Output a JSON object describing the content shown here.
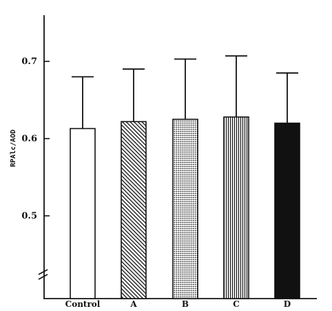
{
  "chart_data": {
    "type": "bar",
    "title": "",
    "xlabel": "",
    "ylabel": "RPAlc/AOD",
    "categories": [
      "Control",
      "A",
      "B",
      "C",
      "D"
    ],
    "values": [
      0.613,
      0.622,
      0.625,
      0.628,
      0.62
    ],
    "error_upper": [
      0.68,
      0.69,
      0.703,
      0.707,
      0.685
    ],
    "ylim": [
      0.4,
      0.75
    ],
    "yticks": [
      0.5,
      0.6,
      0.7
    ],
    "ytick_labels": [
      "0.5",
      "0.6",
      "0.7"
    ],
    "axis_break": true,
    "grid": false,
    "fills": [
      "white",
      "diagonal-hatch",
      "dots",
      "vertical-lines",
      "solid-black"
    ]
  }
}
